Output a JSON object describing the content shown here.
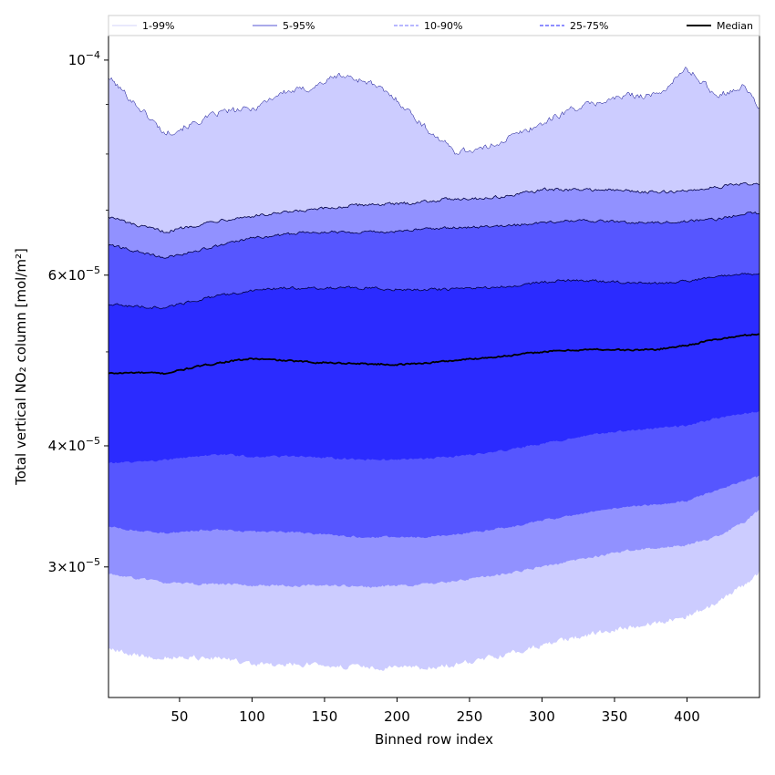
{
  "chart_data": {
    "type": "area",
    "xlabel": "Binned row index",
    "ylabel": "Total vertical NO₂ column [mol/m²]",
    "yscale": "log",
    "xlim": [
      1,
      450
    ],
    "ylim": [
      2.2e-05,
      0.000106
    ],
    "x_ticks": [
      50,
      100,
      150,
      200,
      250,
      300,
      350,
      400
    ],
    "y_major_ticks": [
      {
        "value": 0.0001,
        "mantissa": "",
        "exponent": "−4"
      },
      {
        "value": 6e-05,
        "mantissa": "6",
        "exponent": "−5"
      },
      {
        "value": 4e-05,
        "mantissa": "4",
        "exponent": "−5"
      },
      {
        "value": 3e-05,
        "mantissa": "3",
        "exponent": "−5"
      }
    ],
    "y_minor_ticks": [
      9e-05,
      8e-05,
      7e-05,
      5e-05
    ],
    "legend": {
      "placement": "top",
      "entries": [
        {
          "label": "1-99%",
          "color": "#dcdcfa",
          "style": "solid"
        },
        {
          "label": "5-95%",
          "color": "#7777dd",
          "style": "solid"
        },
        {
          "label": "10-90%",
          "color": "#8c8cff",
          "style": "dashed"
        },
        {
          "label": "25-75%",
          "color": "#4a4aff",
          "style": "dashed"
        },
        {
          "label": "Median",
          "color": "#000000",
          "style": "solid"
        }
      ]
    },
    "knots_x": [
      1,
      20,
      40,
      60,
      80,
      100,
      120,
      140,
      160,
      180,
      200,
      220,
      240,
      260,
      280,
      300,
      320,
      340,
      360,
      380,
      400,
      420,
      440,
      450
    ],
    "bands": [
      {
        "name": "1-99%",
        "color": "#ccccff",
        "upper": [
          9.6e-05,
          9e-05,
          8.4e-05,
          8.6e-05,
          8.85e-05,
          8.9e-05,
          9.25e-05,
          9.35e-05,
          9.65e-05,
          9.5e-05,
          9.1e-05,
          8.5e-05,
          8.05e-05,
          8.1e-05,
          8.35e-05,
          8.6e-05,
          8.9e-05,
          9.05e-05,
          9.2e-05,
          9.2e-05,
          9.8e-05,
          9.2e-05,
          9.4e-05,
          8.9e-05
        ],
        "lower": [
          2.47e-05,
          2.43e-05,
          2.42e-05,
          2.42e-05,
          2.41e-05,
          2.38e-05,
          2.38e-05,
          2.38e-05,
          2.37e-05,
          2.36e-05,
          2.36e-05,
          2.36e-05,
          2.38e-05,
          2.41e-05,
          2.45e-05,
          2.49e-05,
          2.53e-05,
          2.57e-05,
          2.6e-05,
          2.63e-05,
          2.67e-05,
          2.75e-05,
          2.88e-05,
          2.97e-05
        ]
      },
      {
        "name": "5-95%",
        "color": "#9191ff",
        "upper": [
          6.9e-05,
          6.75e-05,
          6.65e-05,
          6.75e-05,
          6.85e-05,
          6.9e-05,
          6.95e-05,
          7e-05,
          7.05e-05,
          7.1e-05,
          7.1e-05,
          7.15e-05,
          7.2e-05,
          7.2e-05,
          7.25e-05,
          7.35e-05,
          7.35e-05,
          7.35e-05,
          7.33e-05,
          7.3e-05,
          7.33e-05,
          7.4e-05,
          7.45e-05,
          7.45e-05
        ],
        "lower": [
          2.95e-05,
          2.92e-05,
          2.89e-05,
          2.88e-05,
          2.88e-05,
          2.87e-05,
          2.87e-05,
          2.87e-05,
          2.87e-05,
          2.86e-05,
          2.87e-05,
          2.88e-05,
          2.9e-05,
          2.93e-05,
          2.96e-05,
          3e-05,
          3.04e-05,
          3.08e-05,
          3.12e-05,
          3.14e-05,
          3.16e-05,
          3.22e-05,
          3.34e-05,
          3.44e-05
        ]
      },
      {
        "name": "10-90%",
        "color": "#5656ff",
        "upper": [
          6.45e-05,
          6.35e-05,
          6.25e-05,
          6.35e-05,
          6.45e-05,
          6.55e-05,
          6.6e-05,
          6.65e-05,
          6.65e-05,
          6.65e-05,
          6.65e-05,
          6.7e-05,
          6.72e-05,
          6.73e-05,
          6.75e-05,
          6.8e-05,
          6.83e-05,
          6.82e-05,
          6.8e-05,
          6.8e-05,
          6.82e-05,
          6.85e-05,
          6.95e-05,
          6.95e-05
        ],
        "lower": [
          3.3e-05,
          3.27e-05,
          3.25e-05,
          3.27e-05,
          3.28e-05,
          3.26e-05,
          3.26e-05,
          3.25e-05,
          3.23e-05,
          3.22e-05,
          3.22e-05,
          3.22e-05,
          3.24e-05,
          3.27e-05,
          3.3e-05,
          3.35e-05,
          3.39e-05,
          3.43e-05,
          3.46e-05,
          3.48e-05,
          3.51e-05,
          3.6e-05,
          3.68e-05,
          3.72e-05
        ]
      },
      {
        "name": "25-75%",
        "color": "#2b2bff",
        "upper": [
          5.6e-05,
          5.57e-05,
          5.55e-05,
          5.65e-05,
          5.72e-05,
          5.78e-05,
          5.82e-05,
          5.82e-05,
          5.82e-05,
          5.82e-05,
          5.8e-05,
          5.8e-05,
          5.8e-05,
          5.82e-05,
          5.85e-05,
          5.9e-05,
          5.93e-05,
          5.92e-05,
          5.9e-05,
          5.88e-05,
          5.92e-05,
          5.97e-05,
          6.02e-05,
          6.02e-05
        ],
        "lower": [
          3.84e-05,
          3.85e-05,
          3.87e-05,
          3.9e-05,
          3.92e-05,
          3.9e-05,
          3.9e-05,
          3.9e-05,
          3.88e-05,
          3.87e-05,
          3.87e-05,
          3.88e-05,
          3.9e-05,
          3.93e-05,
          3.97e-05,
          4.02e-05,
          4.07e-05,
          4.12e-05,
          4.15e-05,
          4.17e-05,
          4.2e-05,
          4.27e-05,
          4.32e-05,
          4.35e-05
        ]
      }
    ],
    "median": {
      "name": "Median",
      "color": "#000000",
      "values": [
        4.75e-05,
        4.76e-05,
        4.75e-05,
        4.82e-05,
        4.88e-05,
        4.92e-05,
        4.9e-05,
        4.88e-05,
        4.87e-05,
        4.86e-05,
        4.85e-05,
        4.87e-05,
        4.9e-05,
        4.93e-05,
        4.96e-05,
        5e-05,
        5.02e-05,
        5.03e-05,
        5.02e-05,
        5.03e-05,
        5.08e-05,
        5.15e-05,
        5.2e-05,
        5.22e-05
      ]
    }
  }
}
